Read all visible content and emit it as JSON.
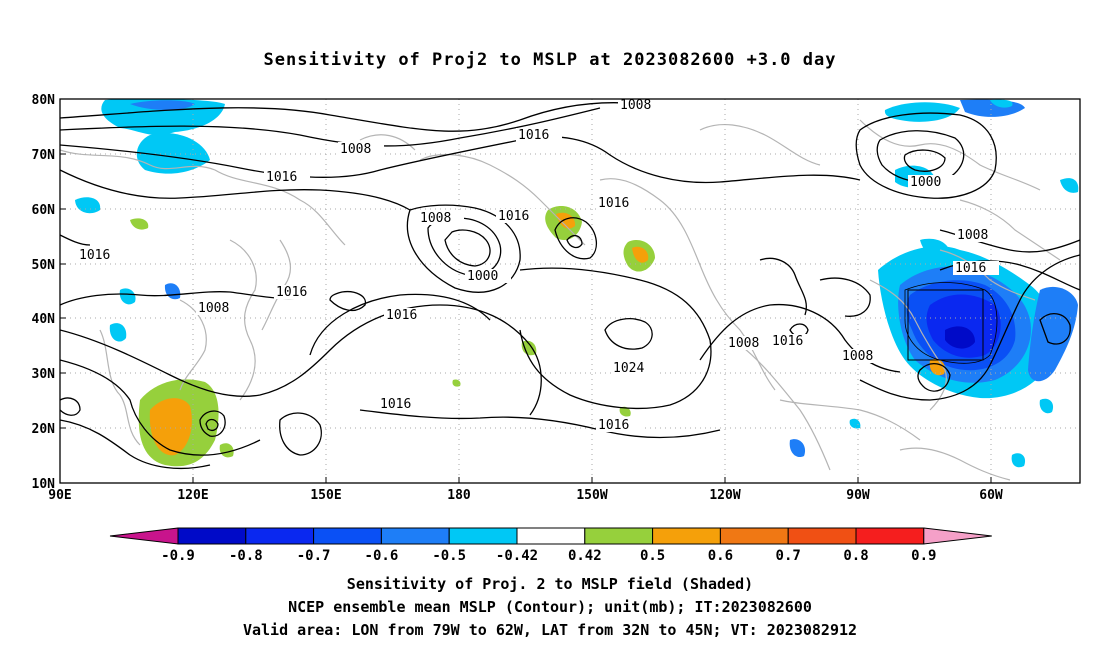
{
  "title": "Sensitivity of Proj2 to MSLP at 2023082600 +3.0 day",
  "map": {
    "lat_labels": [
      "80N",
      "70N",
      "60N",
      "50N",
      "40N",
      "30N",
      "20N",
      "10N"
    ],
    "lon_labels": [
      "90E",
      "120E",
      "150E",
      "180",
      "150W",
      "120W",
      "90W",
      "60W"
    ],
    "contour_labels": [
      {
        "text": "1008"
      },
      {
        "text": "1016"
      },
      {
        "text": "1008"
      },
      {
        "text": "1016"
      },
      {
        "text": "1016"
      },
      {
        "text": "1008"
      },
      {
        "text": "1016"
      },
      {
        "text": "1000"
      },
      {
        "text": "1016"
      },
      {
        "text": "1016"
      },
      {
        "text": "1000"
      },
      {
        "text": "1008"
      },
      {
        "text": "1016"
      },
      {
        "text": "1016"
      },
      {
        "text": "1008"
      },
      {
        "text": "1024"
      },
      {
        "text": "1008"
      },
      {
        "text": "1016"
      },
      {
        "text": "1008"
      },
      {
        "text": "1016"
      },
      {
        "text": "1016"
      },
      {
        "text": "1016"
      }
    ]
  },
  "colorbar": {
    "labels": [
      "-0.9",
      "-0.8",
      "-0.7",
      "-0.6",
      "-0.5",
      "-0.42",
      "0.42",
      "0.5",
      "0.6",
      "0.7",
      "0.8",
      "0.9"
    ],
    "colors": [
      "#000ac8",
      "#0a28f0",
      "#0a50f5",
      "#1e7ef7",
      "#00c8f5",
      "#ffffff",
      "#96d03c",
      "#f5a00a",
      "#f07814",
      "#f05014",
      "#f51e1e"
    ],
    "end_left": "#c8148c",
    "end_right": "#f5a0c8"
  },
  "caption": {
    "line1": "Sensitivity of Proj. 2 to MSLP field (Shaded)",
    "line2": "NCEP ensemble mean MSLP (Contour); unit(mb); IT:2023082600",
    "line3": "Valid area: LON from 79W to 62W, LAT from 32N to 45N; VT: 2023082912"
  }
}
